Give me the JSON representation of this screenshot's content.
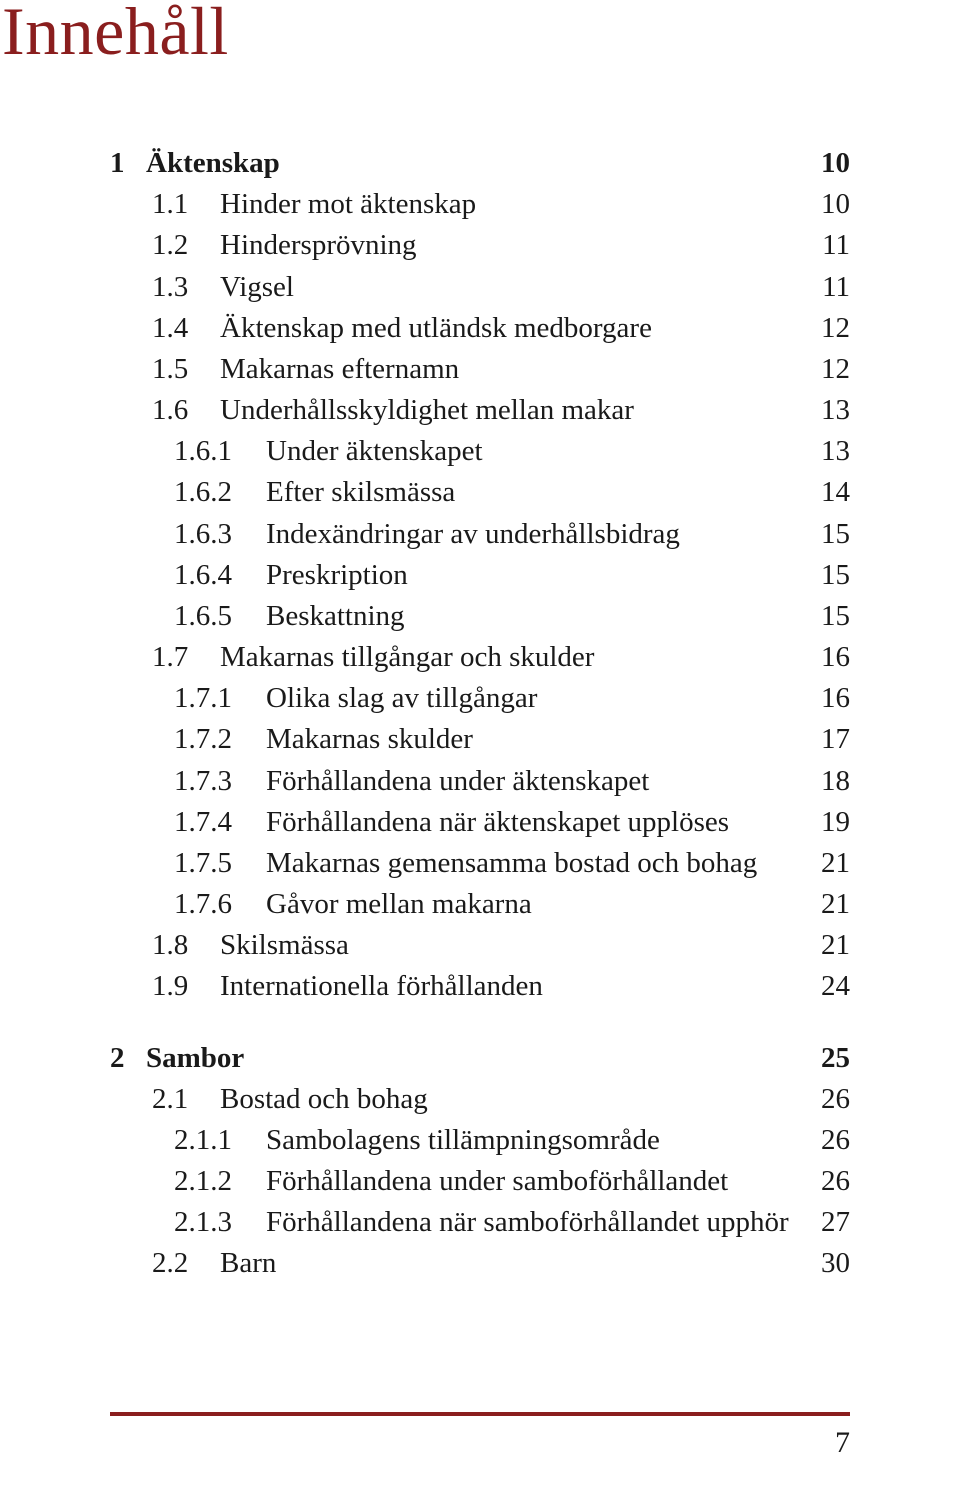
{
  "title": "Innehåll",
  "title_color": "#8a1e1e",
  "rule_color": "#8a1e1e",
  "background_color": "#ffffff",
  "text_color": "#1a1a1a",
  "page_number": "7",
  "fontsize": {
    "title": 68,
    "body": 29
  },
  "toc": [
    {
      "level": 0,
      "num": "1",
      "text": "Äktenskap",
      "page": "10"
    },
    {
      "level": 1,
      "num": "1.1",
      "text": "Hinder mot äktenskap",
      "page": "10"
    },
    {
      "level": 1,
      "num": "1.2",
      "text": "Hindersprövning",
      "page": "11"
    },
    {
      "level": 1,
      "num": "1.3",
      "text": "Vigsel",
      "page": "11"
    },
    {
      "level": 1,
      "num": "1.4",
      "text": "Äktenskap med utländsk medborgare",
      "page": "12"
    },
    {
      "level": 1,
      "num": "1.5",
      "text": "Makarnas efternamn",
      "page": "12"
    },
    {
      "level": 1,
      "num": "1.6",
      "text": "Underhållsskyldighet mellan makar",
      "page": "13"
    },
    {
      "level": 2,
      "num": "1.6.1",
      "text": "Under äktenskapet",
      "page": "13"
    },
    {
      "level": 2,
      "num": "1.6.2",
      "text": "Efter skilsmässa",
      "page": "14"
    },
    {
      "level": 2,
      "num": "1.6.3",
      "text": "Indexändringar av underhållsbidrag",
      "page": "15"
    },
    {
      "level": 2,
      "num": "1.6.4",
      "text": "Preskription",
      "page": "15"
    },
    {
      "level": 2,
      "num": "1.6.5",
      "text": "Beskattning",
      "page": "15"
    },
    {
      "level": 1,
      "num": "1.7",
      "text": "Makarnas tillgångar och skulder",
      "page": "16"
    },
    {
      "level": 2,
      "num": "1.7.1",
      "text": "Olika slag av tillgångar",
      "page": "16"
    },
    {
      "level": 2,
      "num": "1.7.2",
      "text": "Makarnas skulder",
      "page": "17"
    },
    {
      "level": 2,
      "num": "1.7.3",
      "text": "Förhållandena under äktenskapet",
      "page": "18"
    },
    {
      "level": 2,
      "num": "1.7.4",
      "text": "Förhållandena när äktenskapet upplöses",
      "page": "19"
    },
    {
      "level": 2,
      "num": "1.7.5",
      "text": "Makarnas gemensamma bostad och bohag",
      "page": "21"
    },
    {
      "level": 2,
      "num": "1.7.6",
      "text": "Gåvor mellan makarna",
      "page": "21"
    },
    {
      "level": 1,
      "num": "1.8",
      "text": "Skilsmässa",
      "page": "21"
    },
    {
      "level": 1,
      "num": "1.9",
      "text": "Internationella förhållanden",
      "page": "24"
    },
    {
      "gap": true
    },
    {
      "level": 0,
      "num": "2",
      "text": "Sambor",
      "page": "25"
    },
    {
      "level": 1,
      "num": "2.1",
      "text": "Bostad och bohag",
      "page": "26"
    },
    {
      "level": 2,
      "num": "2.1.1",
      "text": "Sambolagens tillämpningsområde",
      "page": "26"
    },
    {
      "level": 2,
      "num": "2.1.2",
      "text": "Förhållandena under samboförhållandet",
      "page": "26"
    },
    {
      "level": 2,
      "num": "2.1.3",
      "text": "Förhållandena när samboförhållandet upphör",
      "page": "27"
    },
    {
      "level": 1,
      "num": "2.2",
      "text": "Barn",
      "page": "30"
    }
  ]
}
